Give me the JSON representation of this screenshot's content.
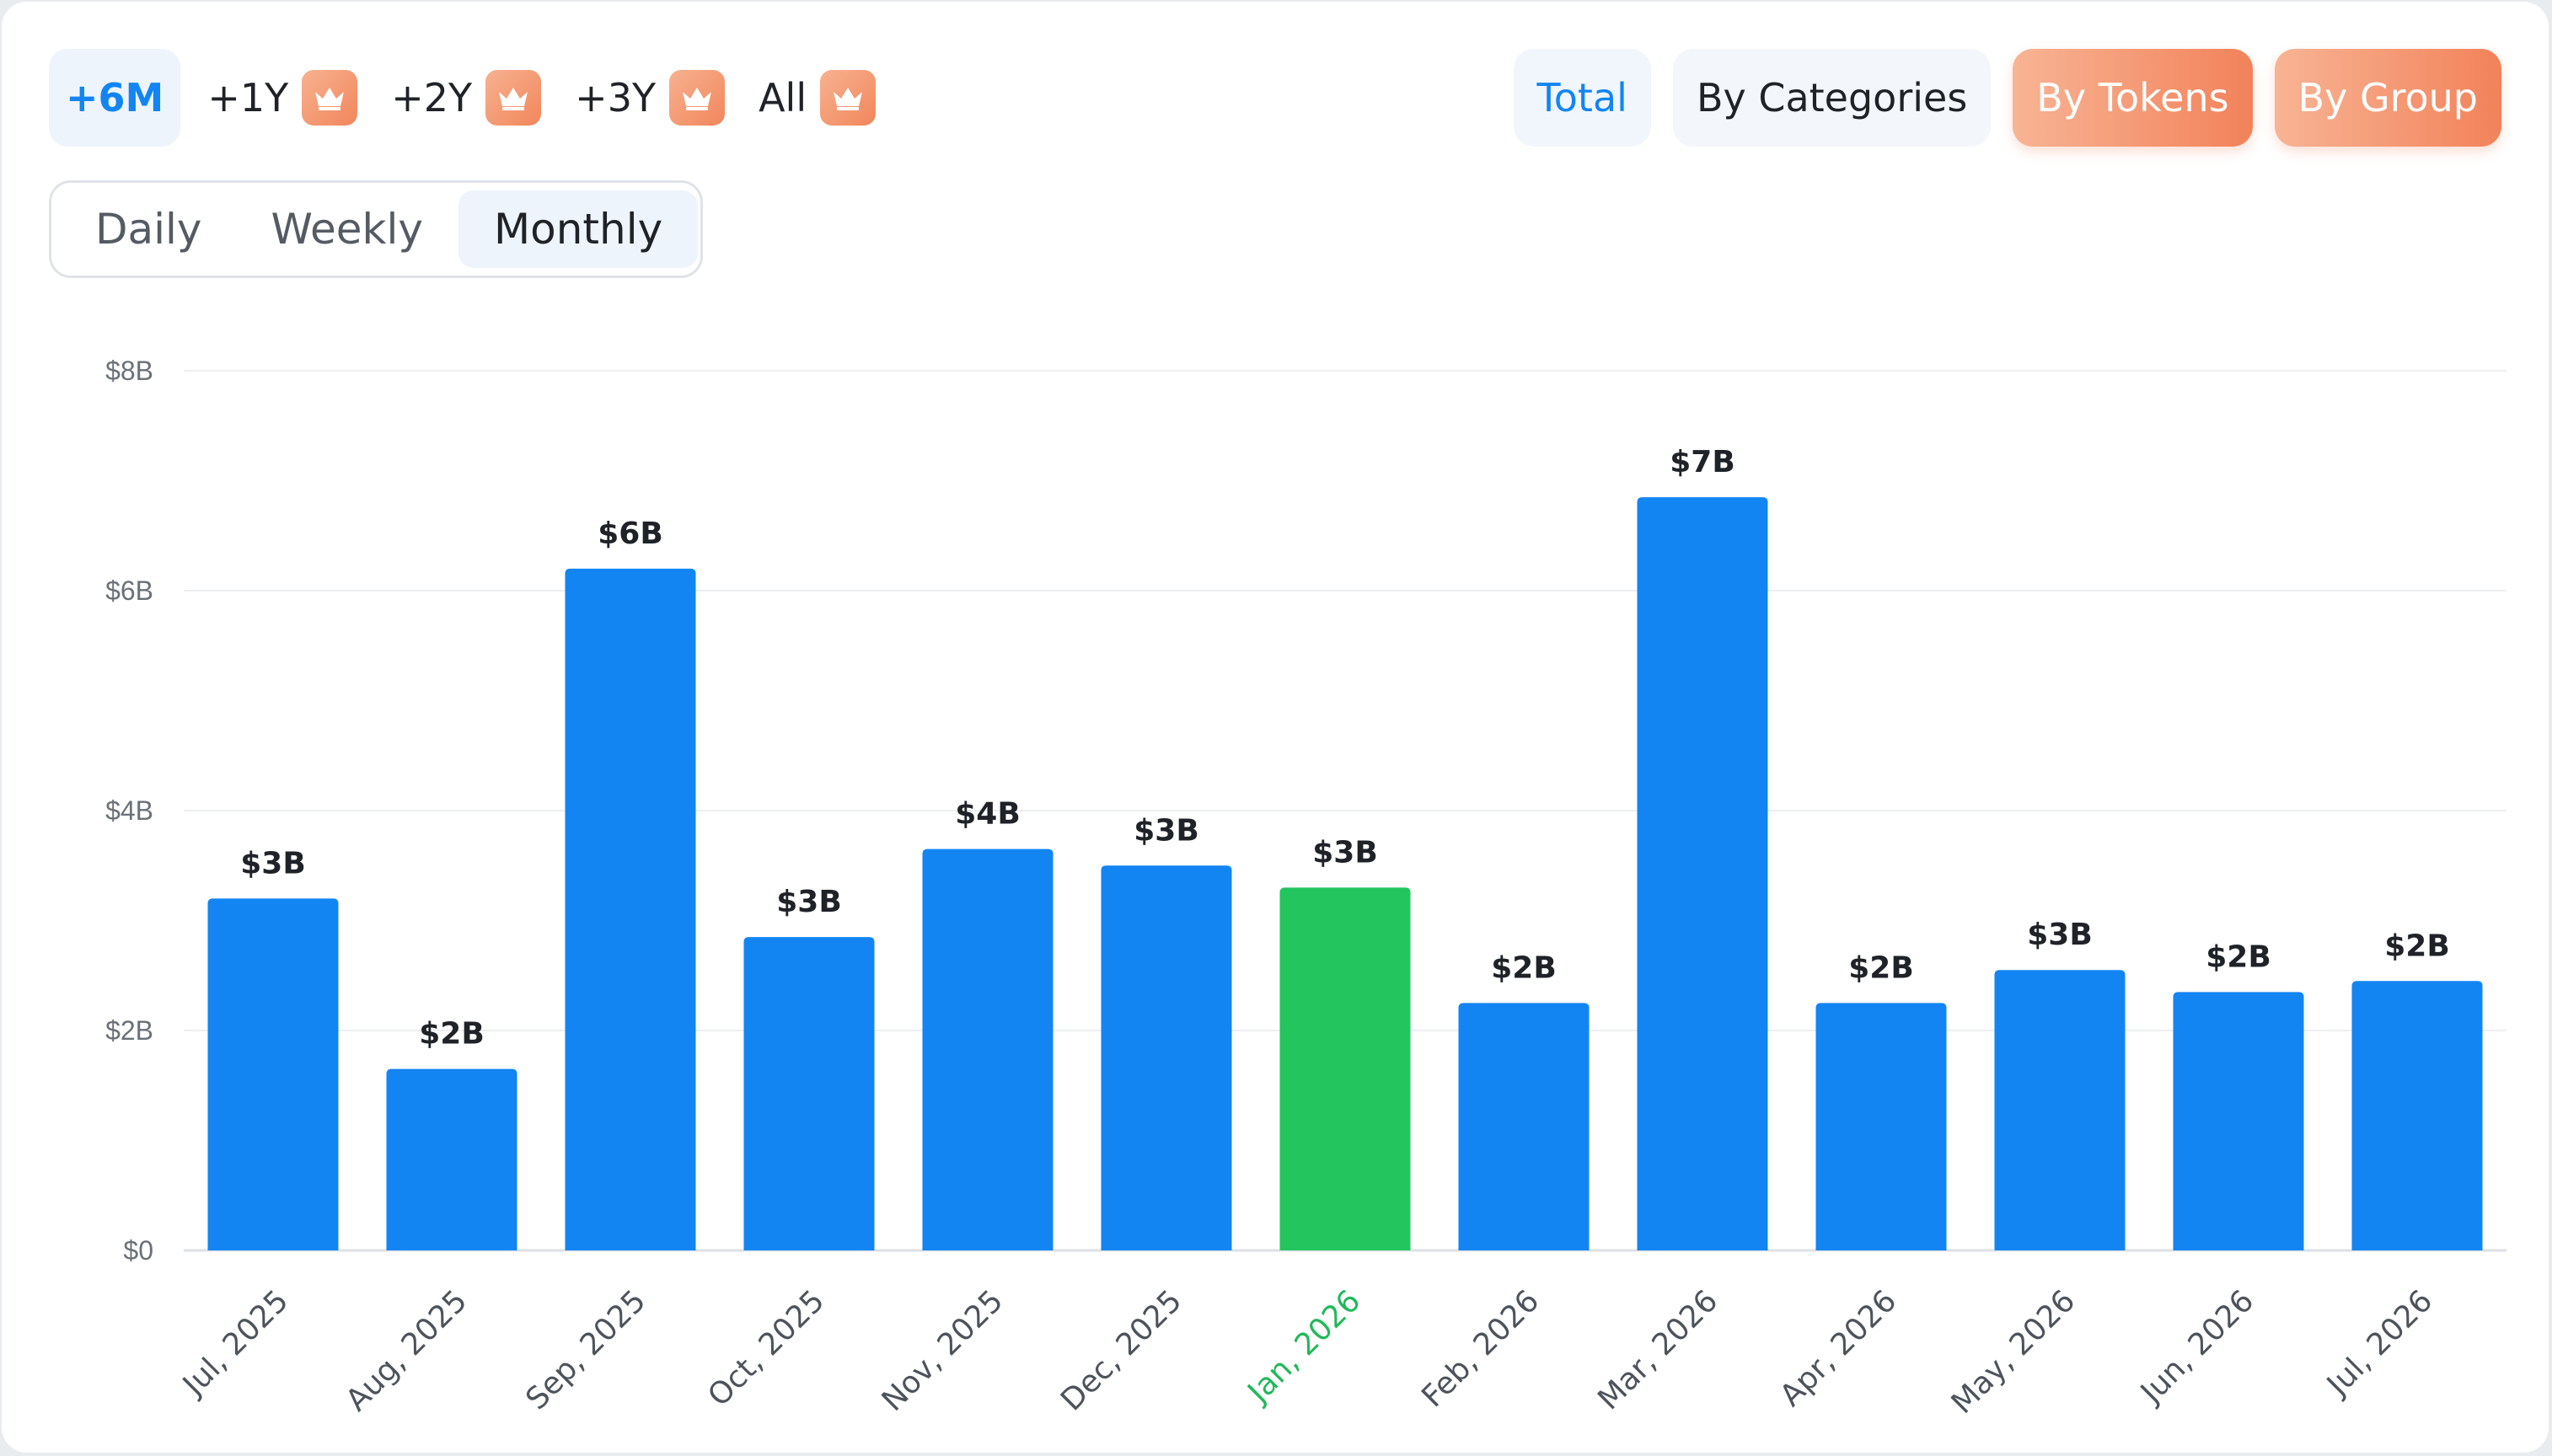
{
  "range_tabs": [
    {
      "label": "+6M",
      "locked": false
    },
    {
      "label": "+1Y",
      "locked": true
    },
    {
      "label": "+2Y",
      "locked": true
    },
    {
      "label": "+3Y",
      "locked": true
    },
    {
      "label": "All",
      "locked": true
    }
  ],
  "active_range": "+6M",
  "view_tabs": [
    {
      "label": "Total"
    },
    {
      "label": "By Categories"
    },
    {
      "label": "By Tokens"
    },
    {
      "label": "By Group"
    }
  ],
  "granularity": {
    "daily": "Daily",
    "weekly": "Weekly",
    "monthly": "Monthly"
  },
  "colors": {
    "accent": "#1285f2",
    "highlight": "#22c55e",
    "premium": "#f2865c"
  },
  "chart_data": {
    "type": "bar",
    "categories": [
      "Jul, 2025",
      "Aug, 2025",
      "Sep, 2025",
      "Oct, 2025",
      "Nov, 2025",
      "Dec, 2025",
      "Jan, 2026",
      "Feb, 2026",
      "Mar, 2026",
      "Apr, 2026",
      "May, 2026",
      "Jun, 2026",
      "Jul, 2026"
    ],
    "values": [
      3.2,
      1.65,
      6.2,
      2.85,
      3.65,
      3.5,
      3.3,
      2.25,
      6.85,
      2.25,
      2.55,
      2.35,
      2.45
    ],
    "data_labels": [
      "$3B",
      "$2B",
      "$6B",
      "$3B",
      "$4B",
      "$3B",
      "$3B",
      "$2B",
      "$7B",
      "$2B",
      "$3B",
      "$2B",
      "$2B"
    ],
    "highlight_category": "Jan, 2026",
    "ylim": [
      0,
      8
    ],
    "yticks": [
      0,
      2,
      4,
      6,
      8
    ],
    "ytick_labels": [
      "$0",
      "$2B",
      "$4B",
      "$6B",
      "$8B"
    ],
    "grid": true,
    "xlabel": "",
    "ylabel": "",
    "title": ""
  }
}
